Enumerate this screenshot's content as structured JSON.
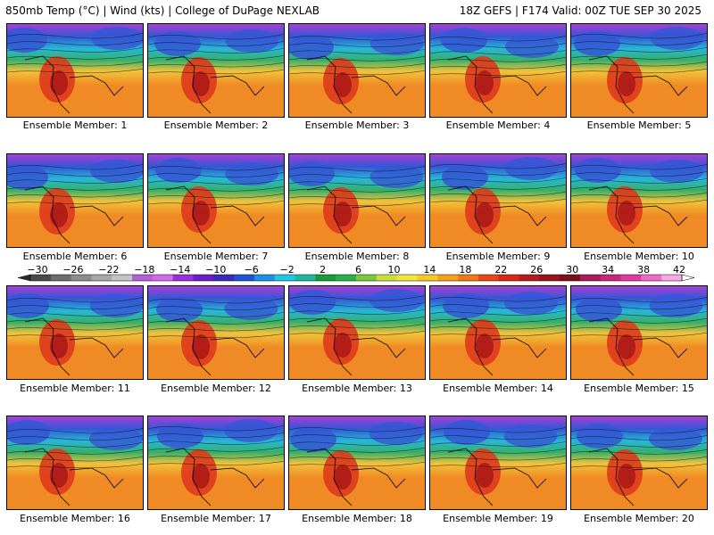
{
  "header": {
    "left_title": "850mb Temp (°C) | Wind (kts) | College of DuPage NEXLAB",
    "right_title": "18Z GEFS | F174 Valid: 00Z TUE SEP 30 2025"
  },
  "member_label_prefix": "Ensemble Member: ",
  "members": [
    "1",
    "2",
    "3",
    "4",
    "5",
    "6",
    "7",
    "8",
    "9",
    "10",
    "11",
    "12",
    "13",
    "14",
    "15",
    "16",
    "17",
    "18",
    "19",
    "20"
  ],
  "colorbar": {
    "labels": [
      "−30",
      "−26",
      "−22",
      "−18",
      "−14",
      "−10",
      "−6",
      "−2",
      "2",
      "6",
      "10",
      "14",
      "18",
      "22",
      "26",
      "30",
      "34",
      "38",
      "42"
    ],
    "colors": [
      "#4a4a4a",
      "#6e6e6e",
      "#8c8c8c",
      "#a8a8a8",
      "#c4c4c4",
      "#b45fd8",
      "#d26ce8",
      "#9a2fd8",
      "#6d1ec8",
      "#3a2ab8",
      "#2352d6",
      "#1e90e6",
      "#20c8e8",
      "#1fb9a0",
      "#159c3c",
      "#2ab04a",
      "#7cc83c",
      "#c8e03c",
      "#f0e83c",
      "#f8c828",
      "#f8a018",
      "#f07818",
      "#e84818",
      "#d82818",
      "#b81c1c",
      "#981418",
      "#7c1018",
      "#a81c5c",
      "#c8287c",
      "#e03ca0",
      "#f068c8",
      "#f8a8e8"
    ]
  },
  "palette": {
    "cold_top": "#a93fd6",
    "cold": "#3457d5",
    "cool": "#27b6d9",
    "mild": "#35b06a",
    "warm": "#f2c23a",
    "warmer": "#f08a24",
    "hot": "#dd3a1c",
    "hottest": "#a81418"
  }
}
